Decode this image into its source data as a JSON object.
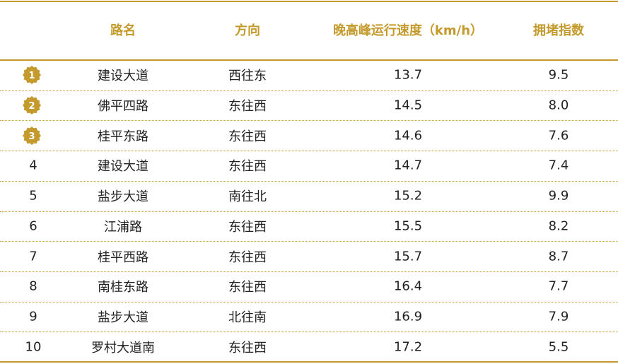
{
  "table": {
    "header": [
      "路名",
      "方向",
      "晚高峰运行速度（km/h）",
      "拥堵指数"
    ],
    "rows": [
      {
        "rank": "1",
        "road": "建设大道",
        "direction": "西往东",
        "speed": "13.7",
        "index": "9.5"
      },
      {
        "rank": "2",
        "road": "佛平四路",
        "direction": "东往西",
        "speed": "14.5",
        "index": "8.0"
      },
      {
        "rank": "3",
        "road": "桂平东路",
        "direction": "东往西",
        "speed": "14.6",
        "index": "7.6"
      },
      {
        "rank": "4",
        "road": "建设大道",
        "direction": "东往西",
        "speed": "14.7",
        "index": "7.4"
      },
      {
        "rank": "5",
        "road": "盐步大道",
        "direction": "南往北",
        "speed": "15.2",
        "index": "9.9"
      },
      {
        "rank": "6",
        "road": "江浦路",
        "direction": "东往西",
        "speed": "15.5",
        "index": "8.2"
      },
      {
        "rank": "7",
        "road": "桂平西路",
        "direction": "东往西",
        "speed": "15.7",
        "index": "8.7"
      },
      {
        "rank": "8",
        "road": "南桂东路",
        "direction": "东往西",
        "speed": "16.4",
        "index": "7.7"
      },
      {
        "rank": "9",
        "road": "盐步大道",
        "direction": "北往南",
        "speed": "16.9",
        "index": "7.9"
      },
      {
        "rank": "10",
        "road": "罗村大道南",
        "direction": "东往西",
        "speed": "17.2",
        "index": "5.5"
      }
    ]
  }
}
